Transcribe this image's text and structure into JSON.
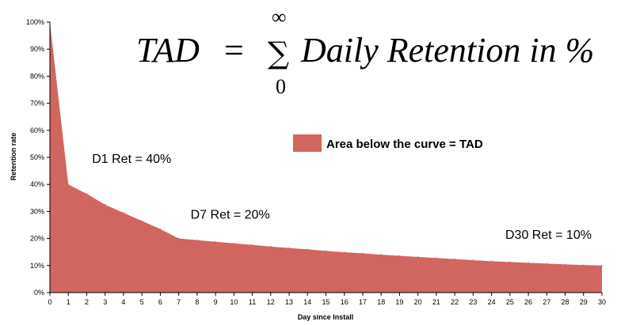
{
  "chart_data": {
    "type": "area",
    "title": "",
    "xlabel": "Day since Install",
    "ylabel": "Retention rate",
    "x": [
      0,
      1,
      2,
      3,
      4,
      5,
      6,
      7,
      8,
      9,
      10,
      11,
      12,
      13,
      14,
      15,
      16,
      17,
      18,
      19,
      20,
      21,
      22,
      23,
      24,
      25,
      26,
      27,
      28,
      29,
      30
    ],
    "values": [
      100,
      40,
      36.5,
      32.5,
      29.5,
      26.5,
      23.5,
      20,
      19.4,
      18.8,
      18.2,
      17.6,
      17,
      16.5,
      16,
      15.4,
      14.9,
      14.5,
      14,
      13.6,
      13.2,
      12.8,
      12.4,
      12,
      11.6,
      11.3,
      11,
      10.7,
      10.4,
      10.2,
      10
    ],
    "xlim": [
      0,
      30
    ],
    "ylim": [
      0,
      100
    ],
    "y_ticks": [
      "0%",
      "10%",
      "20%",
      "30%",
      "40%",
      "50%",
      "60%",
      "70%",
      "80%",
      "90%",
      "100%"
    ],
    "x_ticks": [
      "0",
      "1",
      "2",
      "3",
      "4",
      "5",
      "6",
      "7",
      "8",
      "9",
      "10",
      "11",
      "12",
      "13",
      "14",
      "15",
      "16",
      "17",
      "18",
      "19",
      "20",
      "21",
      "22",
      "23",
      "24",
      "25",
      "26",
      "27",
      "28",
      "29",
      "30"
    ],
    "fill_color": "#D0665F",
    "grid": false,
    "legend": {
      "label": "Area below the curve = TAD",
      "placement": "top-right"
    },
    "annotations": [
      {
        "text": "D1 Ret = 40%",
        "x": 1,
        "y": 40
      },
      {
        "text": "D7 Ret = 20%",
        "x": 7,
        "y": 20
      },
      {
        "text": "D30 Ret = 10%",
        "x": 30,
        "y": 10
      }
    ],
    "formula": {
      "lhs": "TAD",
      "equals": "=",
      "sum_symbol": "∑",
      "upper": "∞",
      "lower": "0",
      "rhs": "Daily Retention in %"
    }
  }
}
